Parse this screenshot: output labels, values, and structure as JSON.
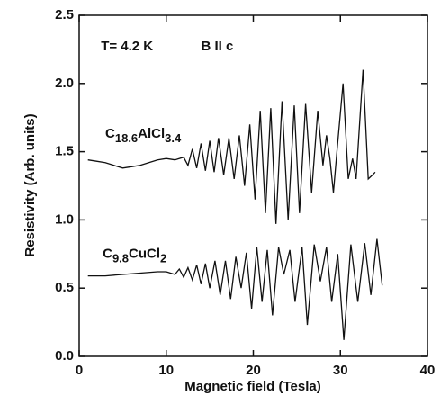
{
  "chart_data": {
    "type": "line",
    "x_label": "Magnetic field (Tesla)",
    "y_label": "Resistivity (Arb. units)",
    "annotations": [
      "T= 4.2 K",
      "B II c"
    ],
    "xlim": [
      0,
      40
    ],
    "xticks": [
      0,
      10,
      20,
      30,
      40
    ],
    "ylim": [
      0,
      2.5
    ],
    "yticks": [
      {
        "value": 0,
        "label": "0.0"
      },
      0.5,
      {
        "value": 1,
        "label": "1.0"
      },
      1.5,
      {
        "value": 2,
        "label": "2.0"
      },
      2.5
    ],
    "series": [
      {
        "label": [
          "C",
          "18.6",
          "AlCl",
          "3.4"
        ],
        "color": "#111111",
        "x": [
          1.0,
          2.0,
          3.0,
          4.0,
          5.0,
          6.0,
          7.0,
          8.0,
          9.0,
          10.0,
          11.0,
          12.0,
          12.5,
          13.0,
          13.5,
          14.0,
          14.5,
          15.0,
          15.5,
          16.0,
          16.6,
          17.2,
          17.8,
          18.4,
          19.0,
          19.6,
          20.2,
          20.8,
          21.4,
          22.0,
          22.6,
          23.3,
          24.0,
          24.7,
          25.3,
          26.0,
          26.7,
          27.4,
          28.0,
          28.4,
          28.8,
          29.2,
          29.6,
          30.3,
          30.9,
          31.4,
          31.8,
          32.6,
          33.2,
          33.7,
          34.0
        ],
        "values": [
          1.44,
          1.43,
          1.42,
          1.4,
          1.38,
          1.39,
          1.4,
          1.42,
          1.44,
          1.45,
          1.44,
          1.46,
          1.4,
          1.52,
          1.38,
          1.56,
          1.36,
          1.58,
          1.35,
          1.6,
          1.33,
          1.6,
          1.3,
          1.62,
          1.25,
          1.7,
          1.15,
          1.8,
          1.05,
          1.82,
          0.97,
          1.87,
          1.0,
          1.84,
          1.05,
          1.85,
          1.2,
          1.8,
          1.4,
          1.62,
          1.45,
          1.2,
          1.5,
          2.0,
          1.3,
          1.45,
          1.3,
          2.1,
          1.3,
          1.33,
          1.35
        ]
      },
      {
        "label": [
          "C",
          "9.8",
          "CuCl",
          "2"
        ],
        "color": "#111111",
        "x": [
          1,
          3,
          5,
          7,
          9,
          10,
          11,
          11.5,
          12,
          12.5,
          13,
          13.5,
          14,
          14.5,
          15,
          15.6,
          16.2,
          16.8,
          17.4,
          18,
          18.6,
          19.2,
          19.8,
          20.4,
          21,
          21.6,
          22.2,
          22.9,
          23.5,
          24.2,
          24.8,
          25.6,
          26.2,
          27,
          27.7,
          28.4,
          29,
          29.7,
          30.4,
          31.2,
          32,
          32.8,
          33.5,
          34.2,
          34.8
        ],
        "values": [
          0.59,
          0.59,
          0.6,
          0.61,
          0.62,
          0.62,
          0.6,
          0.64,
          0.58,
          0.65,
          0.56,
          0.67,
          0.53,
          0.68,
          0.5,
          0.7,
          0.45,
          0.7,
          0.42,
          0.73,
          0.5,
          0.76,
          0.35,
          0.8,
          0.4,
          0.78,
          0.3,
          0.8,
          0.6,
          0.78,
          0.4,
          0.8,
          0.23,
          0.82,
          0.55,
          0.8,
          0.4,
          0.75,
          0.12,
          0.82,
          0.4,
          0.83,
          0.45,
          0.86,
          0.52
        ]
      }
    ]
  }
}
